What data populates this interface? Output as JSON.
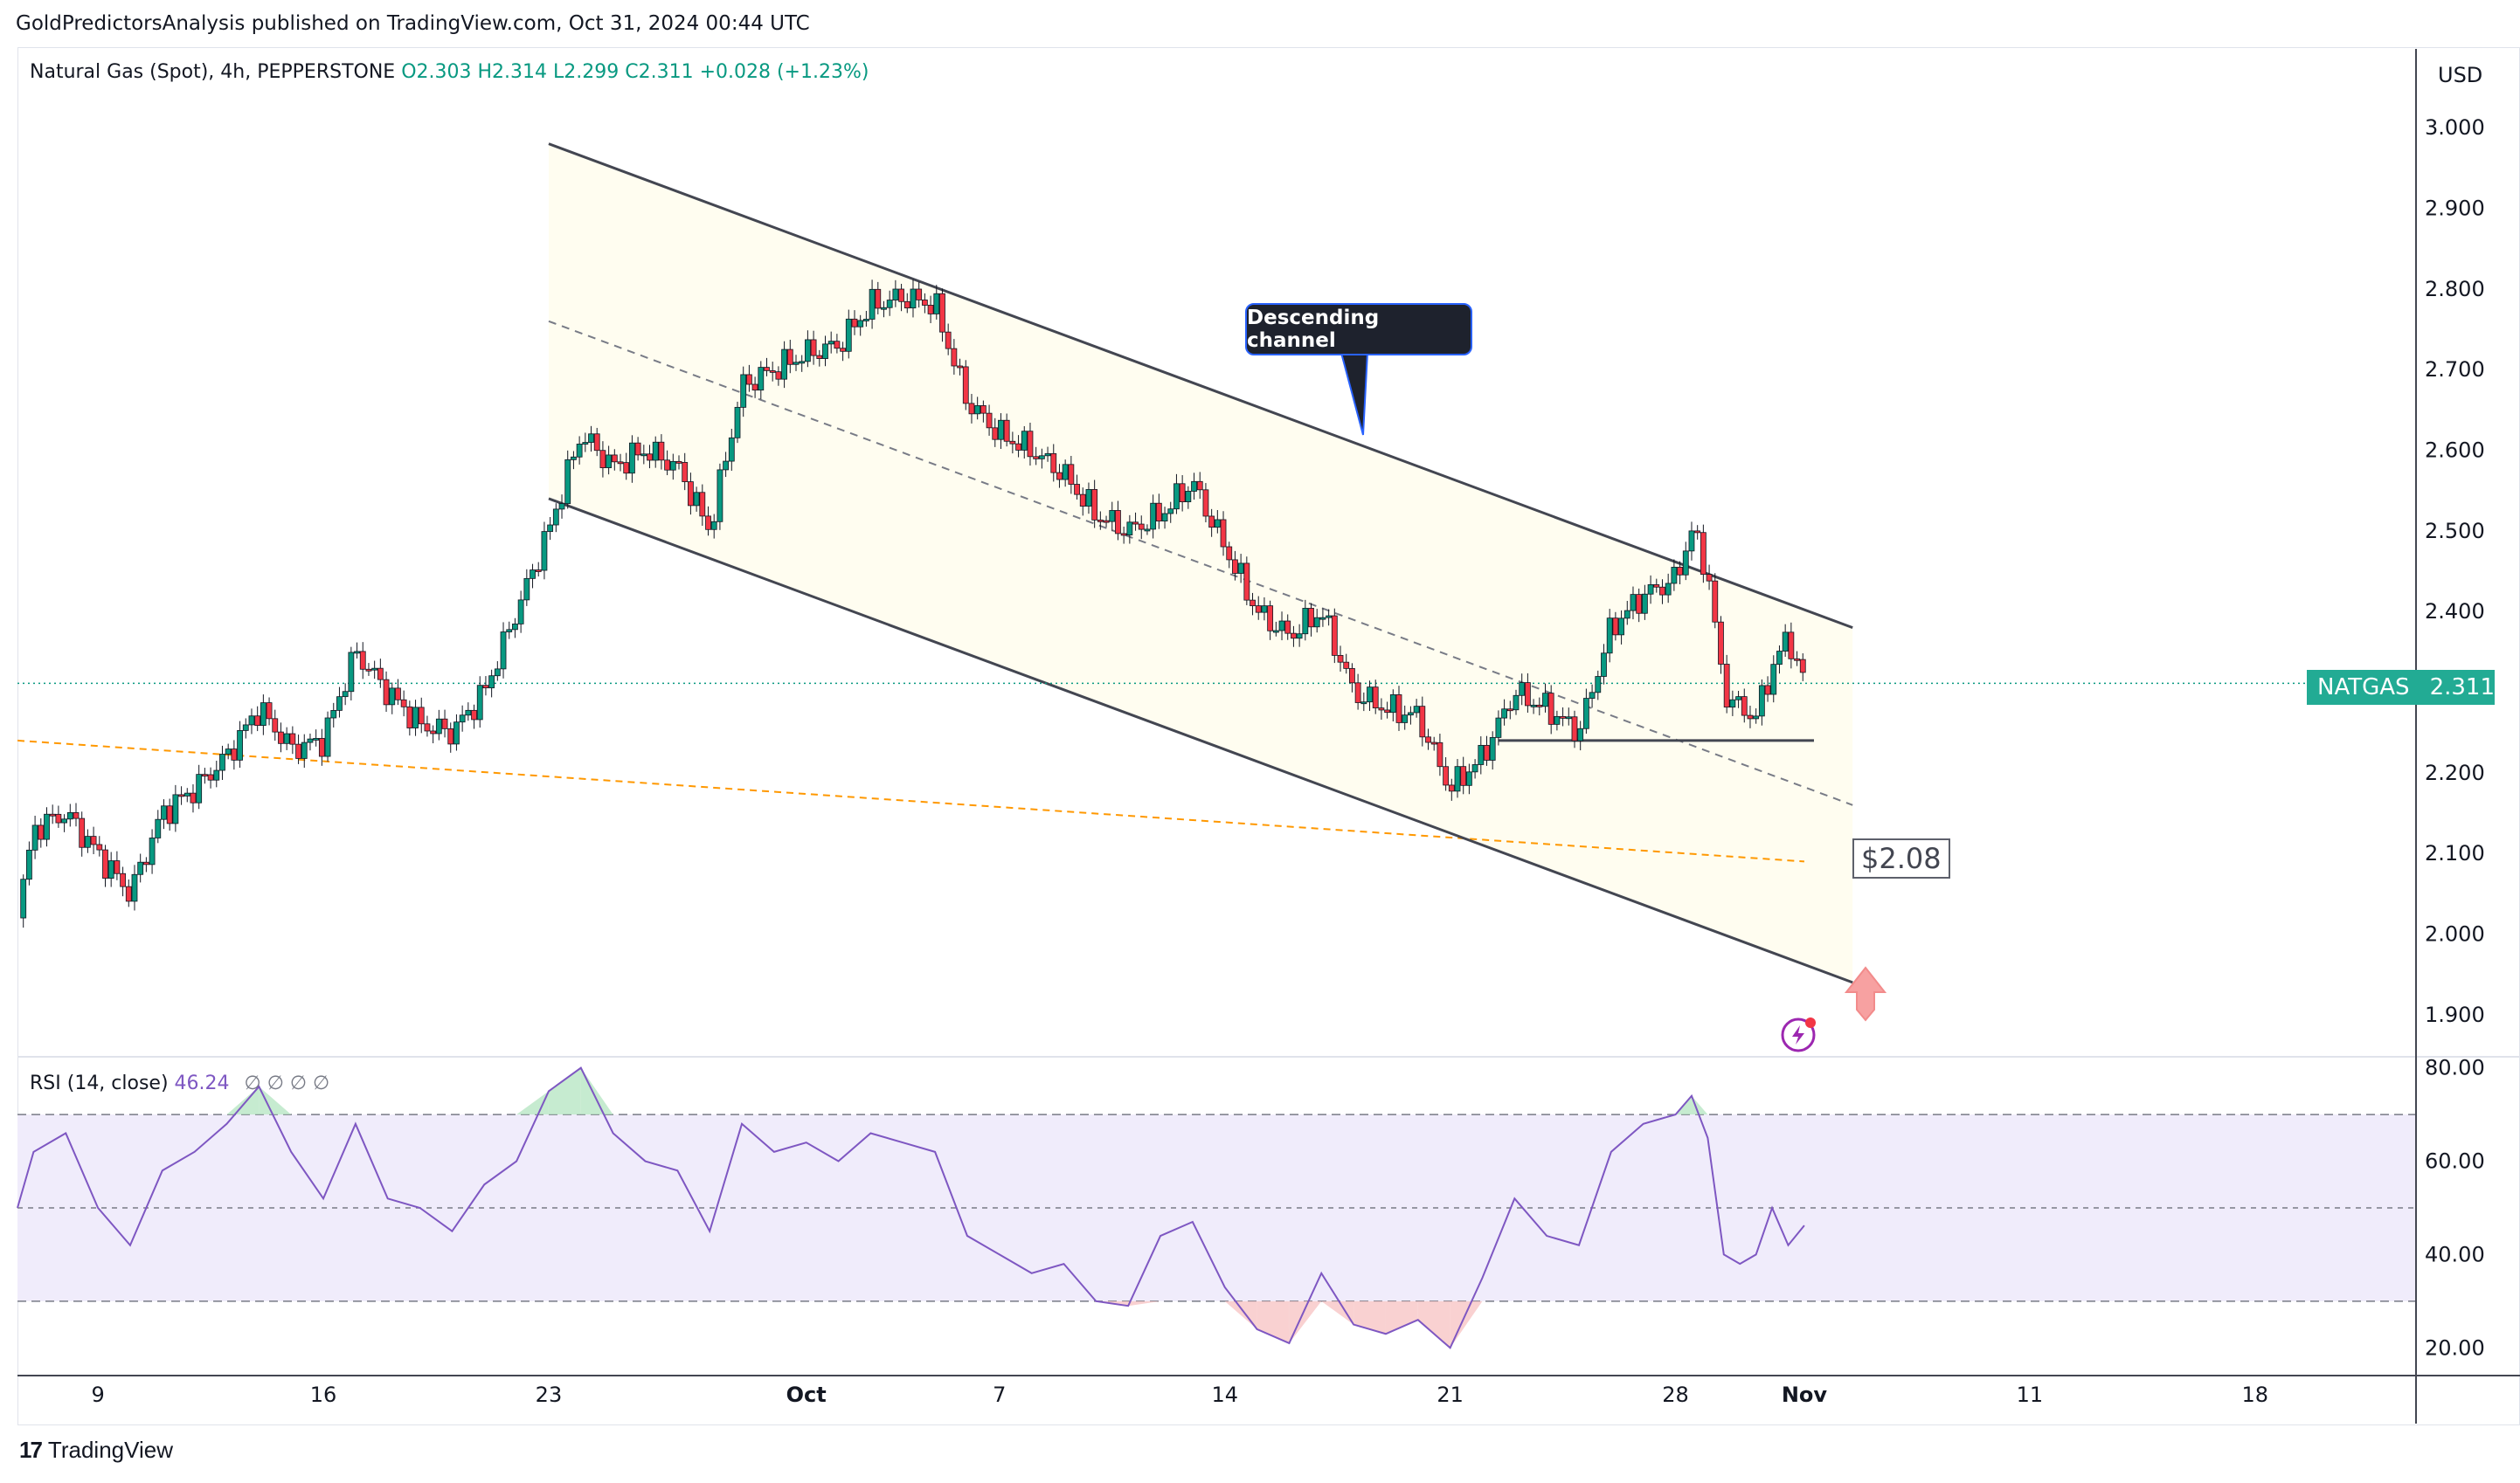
{
  "header": {
    "published": "GoldPredictorsAnalysis published on TradingView.com, Oct 31, 2024 00:44 UTC"
  },
  "legend": {
    "symbol": "Natural Gas (Spot), 4h, PEPPERSTONE",
    "ohlc": "O2.303  H2.314  L2.299  C2.311  +0.028 (+1.23%)"
  },
  "currency": "USD",
  "annotations": {
    "channel_label": "Descending channel",
    "target_label": "$2.08"
  },
  "last_price": {
    "symbol": "NATGAS",
    "value": "2.311"
  },
  "rsi": {
    "label": "RSI (14, close)",
    "value": "46.24",
    "placeholders": "∅  ∅  ∅  ∅"
  },
  "footer": {
    "brand": "TradingView"
  },
  "colors": {
    "up": "#089981",
    "down": "#f23645",
    "rsi_line": "#7e57c2",
    "support_line": "#ff9800",
    "channel": "#434651"
  },
  "chart_data": [
    {
      "type": "candlestick",
      "title": "Natural Gas (Spot), 4h, PEPPERSTONE",
      "y_ticks": [
        "3.000",
        "2.900",
        "2.800",
        "2.700",
        "2.600",
        "2.500",
        "2.400",
        "2.300",
        "2.200",
        "2.100",
        "2.000",
        "1.900"
      ],
      "ylim": [
        1.85,
        3.05
      ],
      "x_ticks": [
        "9",
        "16",
        "23",
        "Oct",
        "7",
        "14",
        "21",
        "28",
        "Nov",
        "11",
        "18"
      ],
      "x_tick_days": [
        0,
        7,
        14,
        22,
        28,
        35,
        42,
        49,
        53,
        60,
        67
      ],
      "xlim_days": [
        -2.5,
        72
      ],
      "close_series": [
        {
          "day": -2.5,
          "close": 2.02
        },
        {
          "day": -2,
          "close": 2.13
        },
        {
          "day": -1,
          "close": 2.15
        },
        {
          "day": 0,
          "close": 2.1
        },
        {
          "day": 1,
          "close": 2.05
        },
        {
          "day": 2,
          "close": 2.15
        },
        {
          "day": 3,
          "close": 2.18
        },
        {
          "day": 4,
          "close": 2.22
        },
        {
          "day": 5,
          "close": 2.28
        },
        {
          "day": 6,
          "close": 2.23
        },
        {
          "day": 7,
          "close": 2.24
        },
        {
          "day": 8,
          "close": 2.35
        },
        {
          "day": 9,
          "close": 2.3
        },
        {
          "day": 10,
          "close": 2.26
        },
        {
          "day": 11,
          "close": 2.25
        },
        {
          "day": 12,
          "close": 2.3
        },
        {
          "day": 13,
          "close": 2.4
        },
        {
          "day": 14,
          "close": 2.5
        },
        {
          "day": 15,
          "close": 2.62
        },
        {
          "day": 16,
          "close": 2.58
        },
        {
          "day": 17,
          "close": 2.6
        },
        {
          "day": 18,
          "close": 2.58
        },
        {
          "day": 19,
          "close": 2.5
        },
        {
          "day": 20,
          "close": 2.68
        },
        {
          "day": 21,
          "close": 2.7
        },
        {
          "day": 22,
          "close": 2.72
        },
        {
          "day": 23,
          "close": 2.73
        },
        {
          "day": 24,
          "close": 2.78
        },
        {
          "day": 25,
          "close": 2.79
        },
        {
          "day": 26,
          "close": 2.78
        },
        {
          "day": 27,
          "close": 2.66
        },
        {
          "day": 28,
          "close": 2.62
        },
        {
          "day": 29,
          "close": 2.6
        },
        {
          "day": 30,
          "close": 2.57
        },
        {
          "day": 31,
          "close": 2.52
        },
        {
          "day": 32,
          "close": 2.5
        },
        {
          "day": 33,
          "close": 2.52
        },
        {
          "day": 34,
          "close": 2.56
        },
        {
          "day": 35,
          "close": 2.48
        },
        {
          "day": 36,
          "close": 2.4
        },
        {
          "day": 37,
          "close": 2.37
        },
        {
          "day": 38,
          "close": 2.4
        },
        {
          "day": 39,
          "close": 2.3
        },
        {
          "day": 40,
          "close": 2.28
        },
        {
          "day": 41,
          "close": 2.27
        },
        {
          "day": 42,
          "close": 2.18
        },
        {
          "day": 43,
          "close": 2.22
        },
        {
          "day": 44,
          "close": 2.3
        },
        {
          "day": 45,
          "close": 2.28
        },
        {
          "day": 46,
          "close": 2.25
        },
        {
          "day": 47,
          "close": 2.38
        },
        {
          "day": 48,
          "close": 2.42
        },
        {
          "day": 49,
          "close": 2.44
        },
        {
          "day": 49.5,
          "close": 2.5
        },
        {
          "day": 50,
          "close": 2.45
        },
        {
          "day": 50.5,
          "close": 2.3
        },
        {
          "day": 51,
          "close": 2.28
        },
        {
          "day": 51.5,
          "close": 2.27
        },
        {
          "day": 52,
          "close": 2.33
        },
        {
          "day": 52.5,
          "close": 2.37
        },
        {
          "day": 53,
          "close": 2.31
        }
      ],
      "annotations": {
        "descending_channel_upper": [
          {
            "day": 14,
            "price": 2.98
          },
          {
            "day": 54.5,
            "price": 2.38
          }
        ],
        "descending_channel_lower": [
          {
            "day": 14,
            "price": 2.54
          },
          {
            "day": 54.5,
            "price": 1.94
          }
        ],
        "channel_midline": [
          {
            "day": 14,
            "price": 2.76
          },
          {
            "day": 54.5,
            "price": 2.16
          }
        ],
        "support_dashed": [
          {
            "day": -2.5,
            "price": 2.24
          },
          {
            "day": 53,
            "price": 2.09
          }
        ],
        "horizontal_support": 2.24,
        "target_price": 2.08,
        "last_price": 2.311
      }
    },
    {
      "type": "line",
      "title": "RSI (14, close)",
      "y_ticks": [
        "80.00",
        "60.00",
        "40.00",
        "20.00"
      ],
      "ylim": [
        15,
        82
      ],
      "bands": [
        70,
        50,
        30
      ],
      "series": [
        {
          "name": "RSI (14, close)",
          "points": [
            {
              "day": -2.5,
              "rsi": 50
            },
            {
              "day": -2,
              "rsi": 62
            },
            {
              "day": -1,
              "rsi": 66
            },
            {
              "day": 0,
              "rsi": 50
            },
            {
              "day": 1,
              "rsi": 42
            },
            {
              "day": 2,
              "rsi": 58
            },
            {
              "day": 3,
              "rsi": 62
            },
            {
              "day": 4,
              "rsi": 68
            },
            {
              "day": 5,
              "rsi": 76
            },
            {
              "day": 6,
              "rsi": 62
            },
            {
              "day": 7,
              "rsi": 52
            },
            {
              "day": 8,
              "rsi": 68
            },
            {
              "day": 9,
              "rsi": 52
            },
            {
              "day": 10,
              "rsi": 50
            },
            {
              "day": 11,
              "rsi": 45
            },
            {
              "day": 12,
              "rsi": 55
            },
            {
              "day": 13,
              "rsi": 60
            },
            {
              "day": 14,
              "rsi": 75
            },
            {
              "day": 15,
              "rsi": 80
            },
            {
              "day": 16,
              "rsi": 66
            },
            {
              "day": 17,
              "rsi": 60
            },
            {
              "day": 18,
              "rsi": 58
            },
            {
              "day": 19,
              "rsi": 45
            },
            {
              "day": 20,
              "rsi": 68
            },
            {
              "day": 21,
              "rsi": 62
            },
            {
              "day": 22,
              "rsi": 64
            },
            {
              "day": 23,
              "rsi": 60
            },
            {
              "day": 24,
              "rsi": 66
            },
            {
              "day": 25,
              "rsi": 64
            },
            {
              "day": 26,
              "rsi": 62
            },
            {
              "day": 27,
              "rsi": 44
            },
            {
              "day": 28,
              "rsi": 40
            },
            {
              "day": 29,
              "rsi": 36
            },
            {
              "day": 30,
              "rsi": 38
            },
            {
              "day": 31,
              "rsi": 30
            },
            {
              "day": 32,
              "rsi": 29
            },
            {
              "day": 33,
              "rsi": 44
            },
            {
              "day": 34,
              "rsi": 47
            },
            {
              "day": 35,
              "rsi": 33
            },
            {
              "day": 36,
              "rsi": 24
            },
            {
              "day": 37,
              "rsi": 21
            },
            {
              "day": 38,
              "rsi": 36
            },
            {
              "day": 39,
              "rsi": 25
            },
            {
              "day": 40,
              "rsi": 23
            },
            {
              "day": 41,
              "rsi": 26
            },
            {
              "day": 42,
              "rsi": 20
            },
            {
              "day": 43,
              "rsi": 35
            },
            {
              "day": 44,
              "rsi": 52
            },
            {
              "day": 45,
              "rsi": 44
            },
            {
              "day": 46,
              "rsi": 42
            },
            {
              "day": 47,
              "rsi": 62
            },
            {
              "day": 48,
              "rsi": 68
            },
            {
              "day": 49,
              "rsi": 70
            },
            {
              "day": 49.5,
              "rsi": 74
            },
            {
              "day": 50,
              "rsi": 65
            },
            {
              "day": 50.5,
              "rsi": 40
            },
            {
              "day": 51,
              "rsi": 38
            },
            {
              "day": 51.5,
              "rsi": 40
            },
            {
              "day": 52,
              "rsi": 50
            },
            {
              "day": 52.5,
              "rsi": 42
            },
            {
              "day": 53,
              "rsi": 46.24
            }
          ]
        }
      ]
    }
  ]
}
